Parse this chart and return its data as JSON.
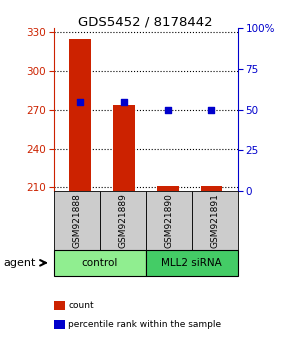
{
  "title": "GDS5452 / 8178442",
  "samples": [
    "GSM921888",
    "GSM921889",
    "GSM921890",
    "GSM921891"
  ],
  "counts": [
    325,
    274,
    211,
    211
  ],
  "percentiles": [
    55,
    55,
    50,
    50
  ],
  "ylim_left": [
    207,
    333
  ],
  "ylim_right": [
    0,
    100
  ],
  "yticks_left": [
    210,
    240,
    270,
    300,
    330
  ],
  "yticks_right": [
    0,
    25,
    50,
    75,
    100
  ],
  "yticklabels_right": [
    "0",
    "25",
    "50",
    "75",
    "100%"
  ],
  "bar_color": "#cc2200",
  "dot_color": "#0000cc",
  "groups": [
    {
      "label": "control",
      "samples": [
        0,
        1
      ],
      "color": "#90ee90"
    },
    {
      "label": "MLL2 siRNA",
      "samples": [
        2,
        3
      ],
      "color": "#44cc66"
    }
  ],
  "agent_label": "agent",
  "legend_items": [
    {
      "color": "#cc2200",
      "label": "count"
    },
    {
      "color": "#0000cc",
      "label": "percentile rank within the sample"
    }
  ],
  "bar_width": 0.5,
  "sample_label_bg": "#cccccc",
  "axis_label_color_left": "#cc2200",
  "axis_label_color_right": "#0000cc"
}
